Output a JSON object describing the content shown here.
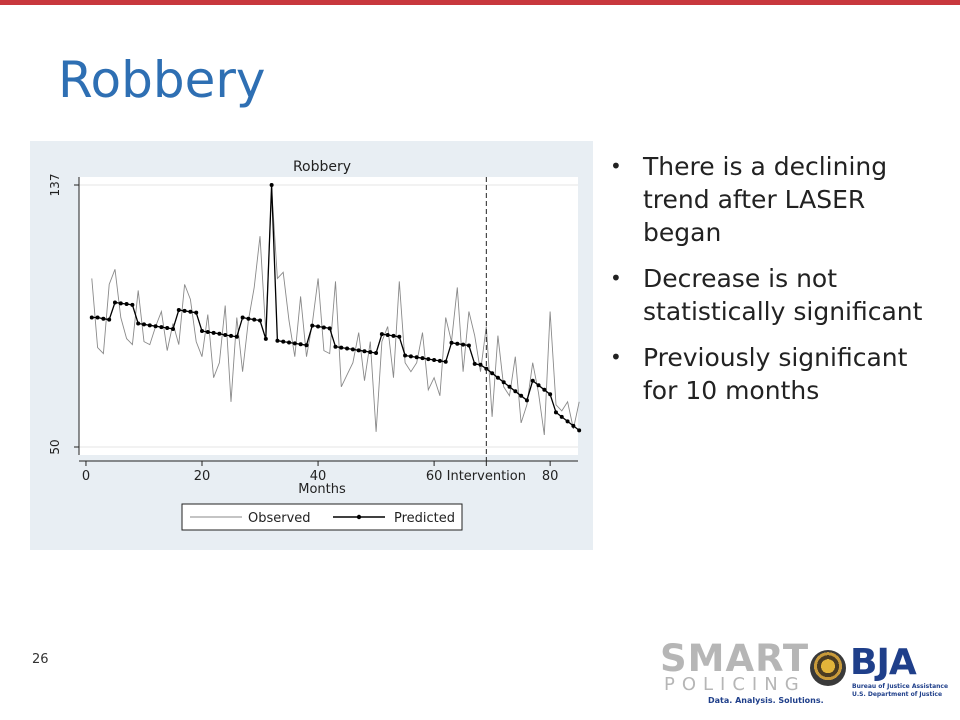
{
  "slide": {
    "title": "Robbery",
    "page_number": "26",
    "bullets": [
      "There is a declining trend after LASER began",
      "Decrease is not statistically significant",
      "Previously significant for 10 months"
    ]
  },
  "colors": {
    "top_bar": "#c8383d",
    "title": "#2e6fb3",
    "panel": "#e8eef3",
    "observed": "#8a8a8a",
    "predicted": "#000000"
  },
  "logos": {
    "smart_word": "SMART",
    "policing_word": "POLICING",
    "smart_tagline": "Data. Analysis. Solutions.",
    "bja_word": "BJA",
    "bja_sub_1": "Bureau of Justice Assistance",
    "bja_sub_2": "U.S. Department of Justice",
    "seal": "doj-seal-icon"
  },
  "chart_data": {
    "type": "line",
    "title": "Robbery",
    "xlabel": "Months",
    "ylabel": "",
    "xlim": [
      0,
      85
    ],
    "ylim": [
      50,
      137
    ],
    "x_ticks": [
      {
        "value": 0,
        "label": "0"
      },
      {
        "value": 20,
        "label": "20"
      },
      {
        "value": 40,
        "label": "40"
      },
      {
        "value": 60,
        "label": "60"
      },
      {
        "value": 80,
        "label": "80"
      }
    ],
    "y_ticks": [
      {
        "value": 50,
        "label": "50"
      },
      {
        "value": 137,
        "label": "137"
      }
    ],
    "intervention": {
      "x": 69,
      "label": "Intervention"
    },
    "legend": {
      "position": "bottom",
      "observed_label": "Observed",
      "predicted_label": "Predicted"
    },
    "series": [
      {
        "name": "Observed",
        "style": "line",
        "x": [
          1,
          2,
          3,
          4,
          5,
          6,
          7,
          8,
          9,
          10,
          11,
          12,
          13,
          14,
          15,
          16,
          17,
          18,
          19,
          20,
          21,
          22,
          23,
          24,
          25,
          26,
          27,
          28,
          29,
          30,
          31,
          32,
          33,
          34,
          35,
          36,
          37,
          38,
          39,
          40,
          41,
          42,
          43,
          44,
          45,
          46,
          47,
          48,
          49,
          50,
          51,
          52,
          53,
          54,
          55,
          56,
          57,
          58,
          59,
          60,
          61,
          62,
          63,
          64,
          65,
          66,
          67,
          68,
          69,
          70,
          71,
          72,
          73,
          74,
          75,
          76,
          77,
          78,
          79,
          80,
          81,
          82,
          83,
          84,
          85
        ],
        "values": [
          106,
          83,
          81,
          104,
          109,
          93,
          86,
          84,
          102,
          85,
          84,
          90,
          95,
          82,
          91,
          84,
          104,
          99,
          85,
          80,
          94,
          73,
          78,
          97,
          65,
          93,
          75,
          92,
          103,
          120,
          88,
          136,
          106,
          108,
          92,
          80,
          100,
          80,
          91,
          106,
          82,
          81,
          105,
          70,
          74,
          78,
          88,
          72,
          85,
          55,
          85,
          90,
          73,
          105,
          78,
          75,
          78,
          88,
          69,
          73,
          67,
          93,
          85,
          103,
          75,
          95,
          87,
          75,
          90,
          60,
          87,
          70,
          67,
          80,
          58,
          64,
          78,
          68,
          54,
          95,
          64,
          62,
          65,
          56,
          65
        ]
      },
      {
        "name": "Predicted",
        "style": "line-markers",
        "x": [
          1,
          2,
          3,
          4,
          5,
          6,
          7,
          8,
          9,
          10,
          11,
          12,
          13,
          14,
          15,
          16,
          17,
          18,
          19,
          20,
          21,
          22,
          23,
          24,
          25,
          26,
          27,
          28,
          29,
          30,
          31,
          32,
          33,
          34,
          35,
          36,
          37,
          38,
          39,
          40,
          41,
          42,
          43,
          44,
          45,
          46,
          47,
          48,
          49,
          50,
          51,
          52,
          53,
          54,
          55,
          56,
          57,
          58,
          59,
          60,
          61,
          62,
          63,
          64,
          65,
          66,
          67,
          68,
          69,
          70,
          71,
          72,
          73,
          74,
          75,
          76,
          77,
          78,
          79,
          80,
          81,
          82,
          83,
          84,
          85
        ],
        "values": [
          93,
          93,
          92.6,
          92.3,
          98,
          97.7,
          97.5,
          97.2,
          91,
          90.7,
          90.4,
          90.1,
          89.8,
          89.5,
          89.2,
          95.5,
          95.2,
          94.9,
          94.6,
          88.5,
          88.2,
          87.9,
          87.6,
          87.2,
          86.9,
          86.6,
          93,
          92.6,
          92.3,
          92,
          85.9,
          137,
          85.3,
          85,
          84.7,
          84.4,
          84.1,
          83.8,
          90.3,
          90,
          89.7,
          89.4,
          83.3,
          83,
          82.7,
          82.4,
          82.1,
          81.8,
          81.5,
          81.2,
          87.5,
          87.2,
          86.9,
          86.6,
          80.4,
          80.1,
          79.8,
          79.5,
          79.2,
          78.9,
          78.6,
          78.3,
          84.6,
          84.3,
          84,
          83.7,
          77.6,
          77.3,
          76,
          74.5,
          73,
          71.5,
          70,
          68.5,
          67,
          65.5,
          72,
          70.5,
          69,
          67.5,
          61.5,
          60,
          58.5,
          57,
          55.5
        ]
      }
    ]
  }
}
